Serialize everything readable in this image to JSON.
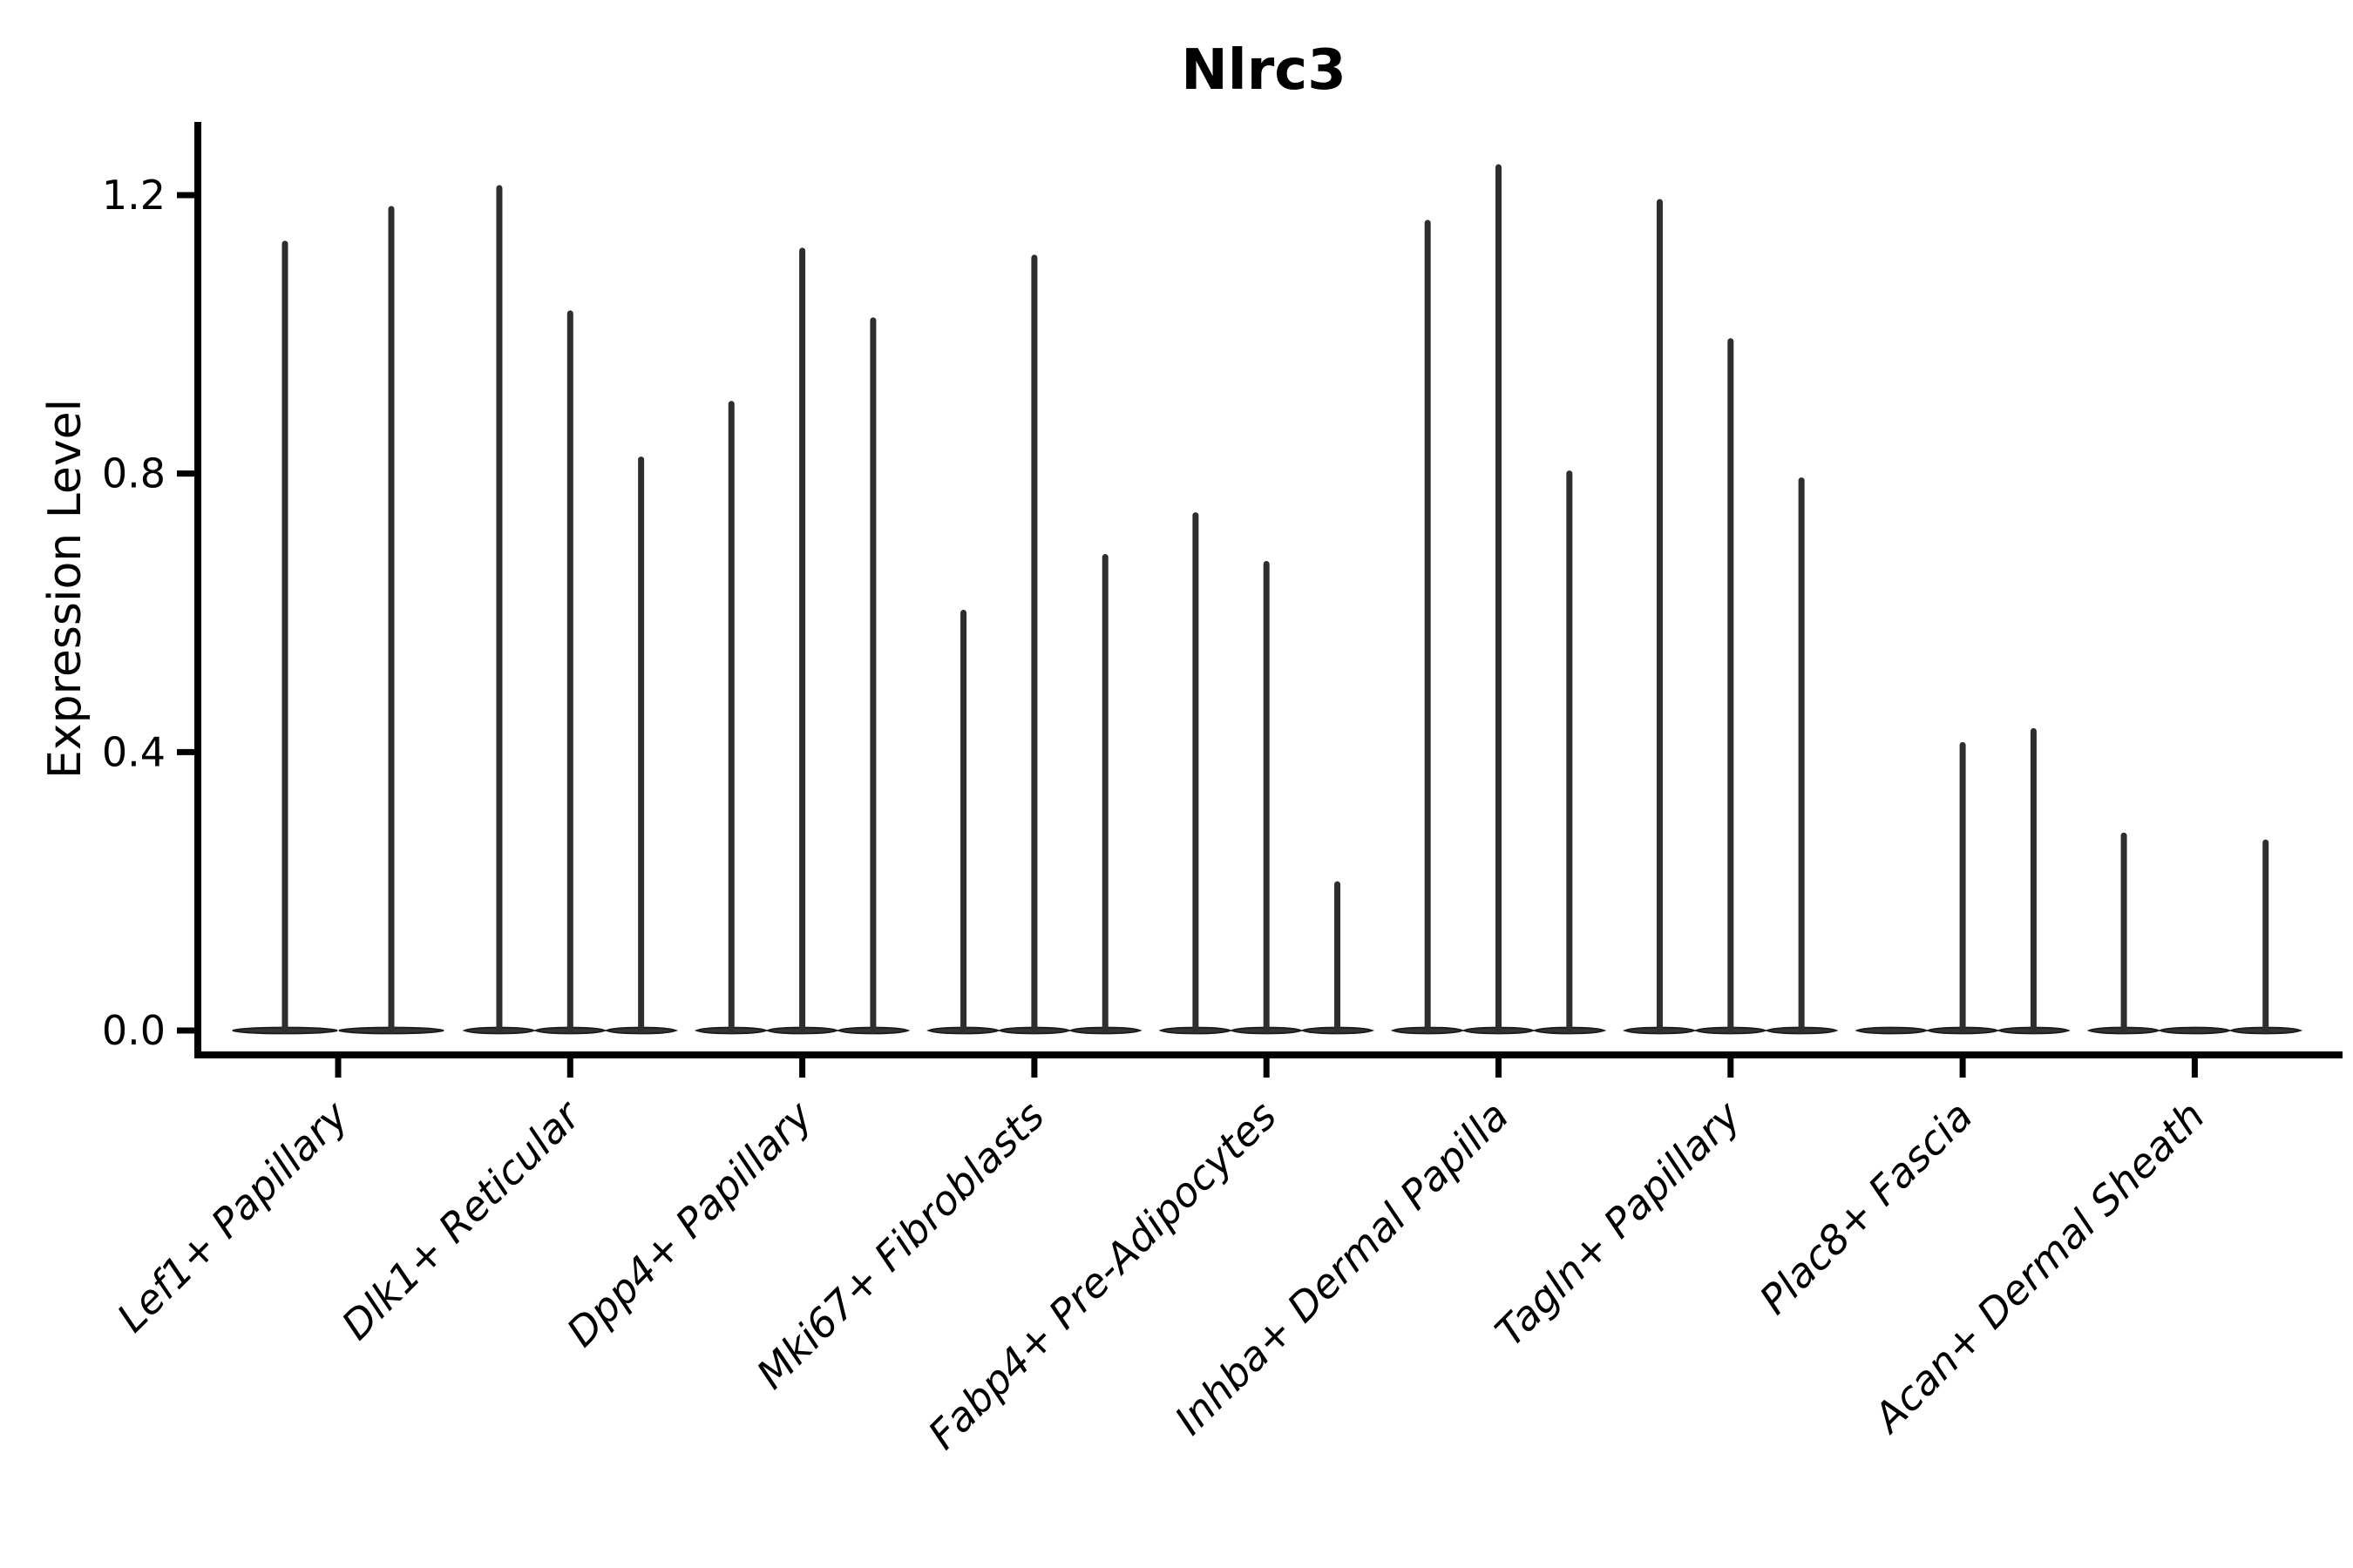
{
  "chart_data": {
    "type": "violin",
    "title": "Nlrc3",
    "ylabel": "Expression Level",
    "xlabel": "",
    "ylim": [
      -0.05,
      1.3
    ],
    "grid": "off",
    "legend": "none",
    "style_note": "Seurat/scanpy-style stacked-split violin plot: each cluster shows 1-3 extremely thin violins; bulk of density is a flat dark bar at expression 0 with a thin spike rising to the maximum expression value; 0 peak means flat violin with no spike",
    "y_ticks": [
      {
        "label": "0.0",
        "value": 0.0
      },
      {
        "label": "0.4",
        "value": 0.4
      },
      {
        "label": "0.8",
        "value": 0.8
      },
      {
        "label": "1.2",
        "value": 1.2
      }
    ],
    "categories": [
      "Lef1+ Papillary",
      "Dlk1+ Reticular",
      "Dpp4+ Papillary",
      "Mki67+ Fibroblasts",
      "Fabp4+ Pre-Adipocytes",
      "Inhba+ Dermal Papilla",
      "Tagln+ Papillary",
      "Plac8+ Fascia",
      "Acan+ Dermal Sheath"
    ],
    "groups": [
      {
        "category": "Lef1+ Papillary",
        "violin_peaks": [
          1.13,
          1.18
        ]
      },
      {
        "category": "Dlk1+ Reticular",
        "violin_peaks": [
          1.21,
          1.03,
          0.82
        ]
      },
      {
        "category": "Dpp4+ Papillary",
        "violin_peaks": [
          0.9,
          1.12,
          1.02
        ]
      },
      {
        "category": "Mki67+ Fibroblasts",
        "violin_peaks": [
          0.6,
          1.11,
          0.68
        ]
      },
      {
        "category": "Fabp4+ Pre-Adipocytes",
        "violin_peaks": [
          0.74,
          0.67,
          0.21
        ]
      },
      {
        "category": "Inhba+ Dermal Papilla",
        "violin_peaks": [
          1.16,
          1.24,
          0.8
        ]
      },
      {
        "category": "Tagln+ Papillary",
        "violin_peaks": [
          1.19,
          0.99,
          0.79
        ]
      },
      {
        "category": "Plac8+ Fascia",
        "violin_peaks": [
          0,
          0.41,
          0.43
        ]
      },
      {
        "category": "Acan+ Dermal Sheath",
        "violin_peaks": [
          0.28,
          0,
          0.27
        ]
      }
    ],
    "colors": {
      "violin_fill": "#343434",
      "violin_outline": "#1c1c1c",
      "spike": "#2e2e2e",
      "axis": "#000000",
      "text": "#000000",
      "background": "#ffffff"
    }
  }
}
